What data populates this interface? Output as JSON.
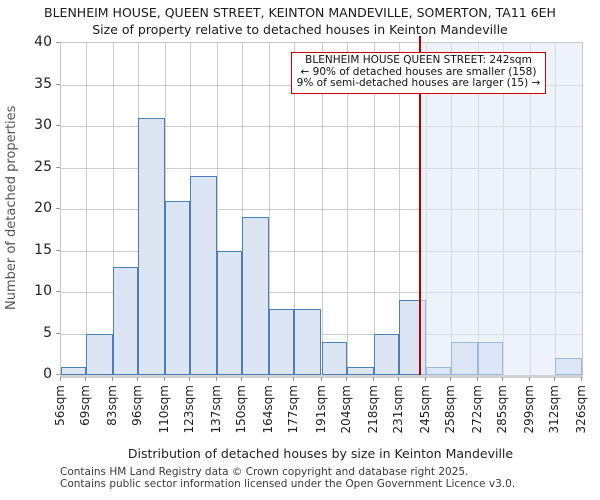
{
  "chart_data": {
    "type": "bar",
    "title": "BLENHEIM HOUSE, QUEEN STREET, KEINTON MANDEVILLE, SOMERTON, TA11 6EH",
    "subtitle": "Size of property relative to detached houses in Keinton Mandeville",
    "xlabel": "Distribution of detached houses by size in Keinton Mandeville",
    "ylabel": "Number of detached properties",
    "bin_edges_sqm": [
      56,
      69,
      83,
      96,
      110,
      123,
      137,
      150,
      164,
      177,
      191,
      204,
      218,
      231,
      245,
      258,
      272,
      285,
      299,
      312,
      326
    ],
    "bin_labels": [
      "56sqm",
      "69sqm",
      "83sqm",
      "96sqm",
      "110sqm",
      "123sqm",
      "137sqm",
      "150sqm",
      "164sqm",
      "177sqm",
      "191sqm",
      "204sqm",
      "218sqm",
      "231sqm",
      "245sqm",
      "258sqm",
      "272sqm",
      "285sqm",
      "299sqm",
      "312sqm",
      "326sqm"
    ],
    "values": [
      1,
      5,
      13,
      31,
      21,
      24,
      15,
      19,
      8,
      8,
      4,
      1,
      5,
      9,
      1,
      4,
      4,
      0,
      0,
      2
    ],
    "ylim": [
      0,
      40
    ],
    "yticks": [
      0,
      5,
      10,
      15,
      20,
      25,
      30,
      35,
      40
    ],
    "grid": true,
    "legend": "none",
    "marker_value_sqm": 242,
    "colors": {
      "bar_fill": "#dbe5f3",
      "bar_edge": "#4d7ebc",
      "marker_line": "#b40000",
      "annotation_border": "#cc0000",
      "shade_region": "rgba(222,231,247,0.55)",
      "grid": "#cccccc"
    }
  },
  "annotation": {
    "lines": [
      "BLENHEIM HOUSE QUEEN STREET: 242sqm",
      "← 90% of detached houses are smaller (158)",
      "9% of semi-detached houses are larger (15) →"
    ]
  },
  "footer": {
    "line1": "Contains HM Land Registry data © Crown copyright and database right 2025.",
    "line2": "Contains public sector information licensed under the Open Government Licence v3.0."
  }
}
